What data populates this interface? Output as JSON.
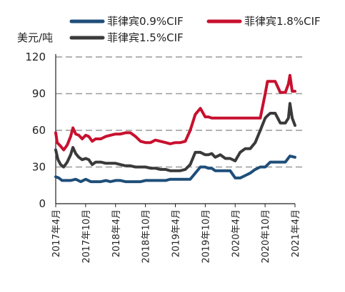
{
  "chart_data": {
    "type": "line",
    "title": "",
    "ylabel": "美元/吨",
    "xlabel": "",
    "ylim": [
      0,
      120
    ],
    "y_ticks": [
      "0",
      "30",
      "60",
      "90",
      "120"
    ],
    "x_ticks": [
      "2017年4月",
      "2017年10月",
      "2018年4月",
      "2018年10月",
      "2019年4月",
      "2019年10月",
      "2020年4月",
      "2020年10月",
      "2021年4月"
    ],
    "grid": "horizontal dashed",
    "legend_position": "top",
    "series": [
      {
        "name": "菲律宾0.9%CIF",
        "color": "#1f4e79",
        "x": [
          "2017-04-01",
          "2017-04-20",
          "2017-05-10",
          "2017-06-01",
          "2017-07-01",
          "2017-08-01",
          "2017-09-01",
          "2017-10-01",
          "2017-11-01",
          "2017-12-01",
          "2018-01-01",
          "2018-02-01",
          "2018-03-01",
          "2018-04-01",
          "2018-05-01",
          "2018-06-01",
          "2018-07-01",
          "2018-08-01",
          "2018-09-01",
          "2018-10-01",
          "2018-11-01",
          "2018-12-01",
          "2019-01-01",
          "2019-02-01",
          "2019-03-01",
          "2019-04-01",
          "2019-05-01",
          "2019-06-01",
          "2019-07-01",
          "2019-08-01",
          "2019-09-01",
          "2019-10-01",
          "2019-10-20",
          "2019-11-10",
          "2019-12-01",
          "2020-01-01",
          "2020-02-01",
          "2020-03-01",
          "2020-04-01",
          "2020-05-01",
          "2020-06-01",
          "2020-07-01",
          "2020-08-01",
          "2020-09-01",
          "2020-10-01",
          "2020-11-01",
          "2020-12-01",
          "2021-01-01",
          "2021-02-01",
          "2021-03-01",
          "2021-04-01"
        ],
        "values": [
          22,
          21,
          19,
          19,
          19,
          20,
          18,
          20,
          18,
          18,
          18,
          19,
          18,
          19,
          19,
          18,
          18,
          18,
          18,
          19,
          19,
          19,
          19,
          19,
          20,
          20,
          20,
          20,
          20,
          25,
          30,
          30,
          29,
          29,
          27,
          27,
          27,
          27,
          21,
          21,
          23,
          25,
          28,
          30,
          30,
          34,
          34,
          34,
          34,
          39,
          38
        ]
      },
      {
        "name": "菲律宾1.8%CIF",
        "color": "#c8102e",
        "x": [
          "2017-04-01",
          "2017-04-10",
          "2017-05-01",
          "2017-05-20",
          "2017-06-10",
          "2017-07-01",
          "2017-07-15",
          "2017-08-01",
          "2017-08-20",
          "2017-09-10",
          "2017-10-01",
          "2017-10-20",
          "2017-11-10",
          "2017-12-01",
          "2018-01-01",
          "2018-02-01",
          "2018-03-01",
          "2018-04-01",
          "2018-05-01",
          "2018-06-01",
          "2018-07-01",
          "2018-08-01",
          "2018-09-01",
          "2018-10-01",
          "2018-11-01",
          "2018-12-01",
          "2019-01-01",
          "2019-02-01",
          "2019-03-01",
          "2019-04-01",
          "2019-05-01",
          "2019-06-01",
          "2019-07-01",
          "2019-08-01",
          "2019-09-01",
          "2019-10-01",
          "2019-10-20",
          "2019-11-10",
          "2019-12-01",
          "2020-01-01",
          "2020-02-01",
          "2020-03-01",
          "2020-04-01",
          "2020-05-01",
          "2020-06-01",
          "2020-07-01",
          "2020-08-01",
          "2020-09-01",
          "2020-10-01",
          "2020-10-15",
          "2020-11-01",
          "2020-12-01",
          "2021-01-01",
          "2021-02-01",
          "2021-02-20",
          "2021-03-01",
          "2021-03-15",
          "2021-04-01"
        ],
        "values": [
          58,
          50,
          47,
          44,
          48,
          55,
          62,
          57,
          56,
          53,
          56,
          55,
          51,
          53,
          53,
          55,
          56,
          57,
          57,
          58,
          58,
          55,
          51,
          50,
          50,
          52,
          51,
          50,
          49,
          50,
          50,
          51,
          60,
          73,
          78,
          71,
          71,
          70,
          70,
          70,
          70,
          70,
          70,
          70,
          70,
          70,
          70,
          70,
          90,
          100,
          100,
          100,
          91,
          91,
          98,
          105,
          92,
          92
        ]
      },
      {
        "name": "菲律宾1.5%CIF",
        "color": "#3a3a3a",
        "x": [
          "2017-04-01",
          "2017-04-15",
          "2017-05-01",
          "2017-05-20",
          "2017-06-10",
          "2017-07-01",
          "2017-07-15",
          "2017-08-01",
          "2017-08-20",
          "2017-09-10",
          "2017-10-01",
          "2017-10-20",
          "2017-11-10",
          "2017-12-01",
          "2018-01-01",
          "2018-02-01",
          "2018-03-01",
          "2018-04-01",
          "2018-05-01",
          "2018-06-01",
          "2018-07-01",
          "2018-08-01",
          "2018-09-01",
          "2018-10-01",
          "2018-11-01",
          "2018-12-01",
          "2019-01-01",
          "2019-02-01",
          "2019-03-01",
          "2019-04-01",
          "2019-05-01",
          "2019-06-01",
          "2019-07-01",
          "2019-08-01",
          "2019-09-01",
          "2019-10-01",
          "2019-10-20",
          "2019-11-10",
          "2019-12-01",
          "2020-01-01",
          "2020-02-01",
          "2020-03-01",
          "2020-04-01",
          "2020-05-01",
          "2020-06-01",
          "2020-07-01",
          "2020-08-01",
          "2020-09-01",
          "2020-10-01",
          "2020-10-15",
          "2020-11-01",
          "2020-12-01",
          "2021-01-01",
          "2021-02-01",
          "2021-02-20",
          "2021-03-01",
          "2021-03-15",
          "2021-04-01"
        ],
        "values": [
          44,
          36,
          32,
          30,
          34,
          40,
          46,
          41,
          38,
          36,
          37,
          36,
          32,
          34,
          34,
          33,
          33,
          33,
          32,
          31,
          31,
          30,
          30,
          30,
          29,
          29,
          28,
          28,
          27,
          27,
          27,
          28,
          32,
          42,
          42,
          40,
          40,
          41,
          38,
          40,
          37,
          37,
          35,
          42,
          45,
          45,
          50,
          60,
          70,
          72,
          74,
          74,
          66,
          66,
          70,
          82,
          70,
          64
        ]
      }
    ]
  }
}
